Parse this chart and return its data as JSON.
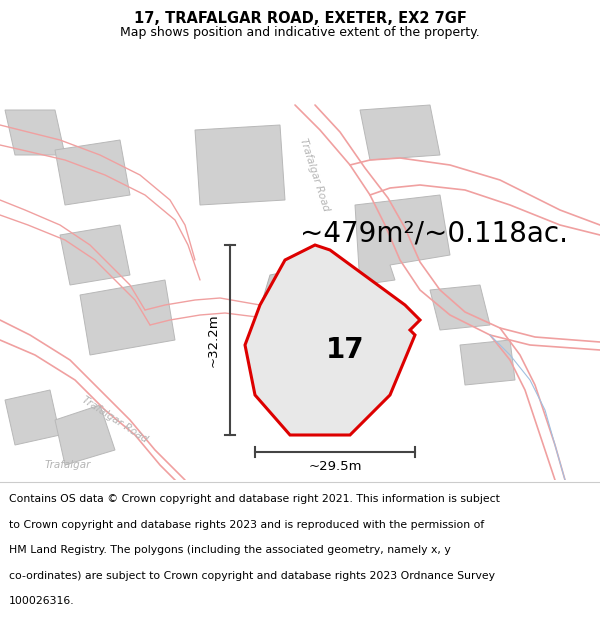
{
  "title_line1": "17, TRAFALGAR ROAD, EXETER, EX2 7GF",
  "title_line2": "Map shows position and indicative extent of the property.",
  "area_text": "~479m²/~0.118ac.",
  "label_17": "17",
  "dim_height": "~32.2m",
  "dim_width": "~29.5m",
  "road_label_top": "Trafalgar Road",
  "road_label_left": "Trafalgar Road",
  "trafalgar_label_bottom_left": "Trafalgar",
  "footer_lines": [
    "Contains OS data © Crown copyright and database right 2021. This information is subject",
    "to Crown copyright and database rights 2023 and is reproduced with the permission of",
    "HM Land Registry. The polygons (including the associated geometry, namely x, y",
    "co-ordinates) are subject to Crown copyright and database rights 2023 Ordnance Survey",
    "100026316."
  ],
  "bg_color": "#ffffff",
  "road_outline_color": "#f0a0a0",
  "road_fill_color": "#ffffff",
  "plot_outline_color": "#dd0000",
  "plot_fill_color": "#e8e8e8",
  "building_color": "#d0d0d0",
  "building_edge": "#b8b8b8",
  "dim_line_color": "#444444",
  "road_label_color": "#b0b0b0",
  "title_fontsize": 10.5,
  "subtitle_fontsize": 9,
  "area_fontsize": 20,
  "label_fontsize": 20,
  "footer_fontsize": 7.8
}
